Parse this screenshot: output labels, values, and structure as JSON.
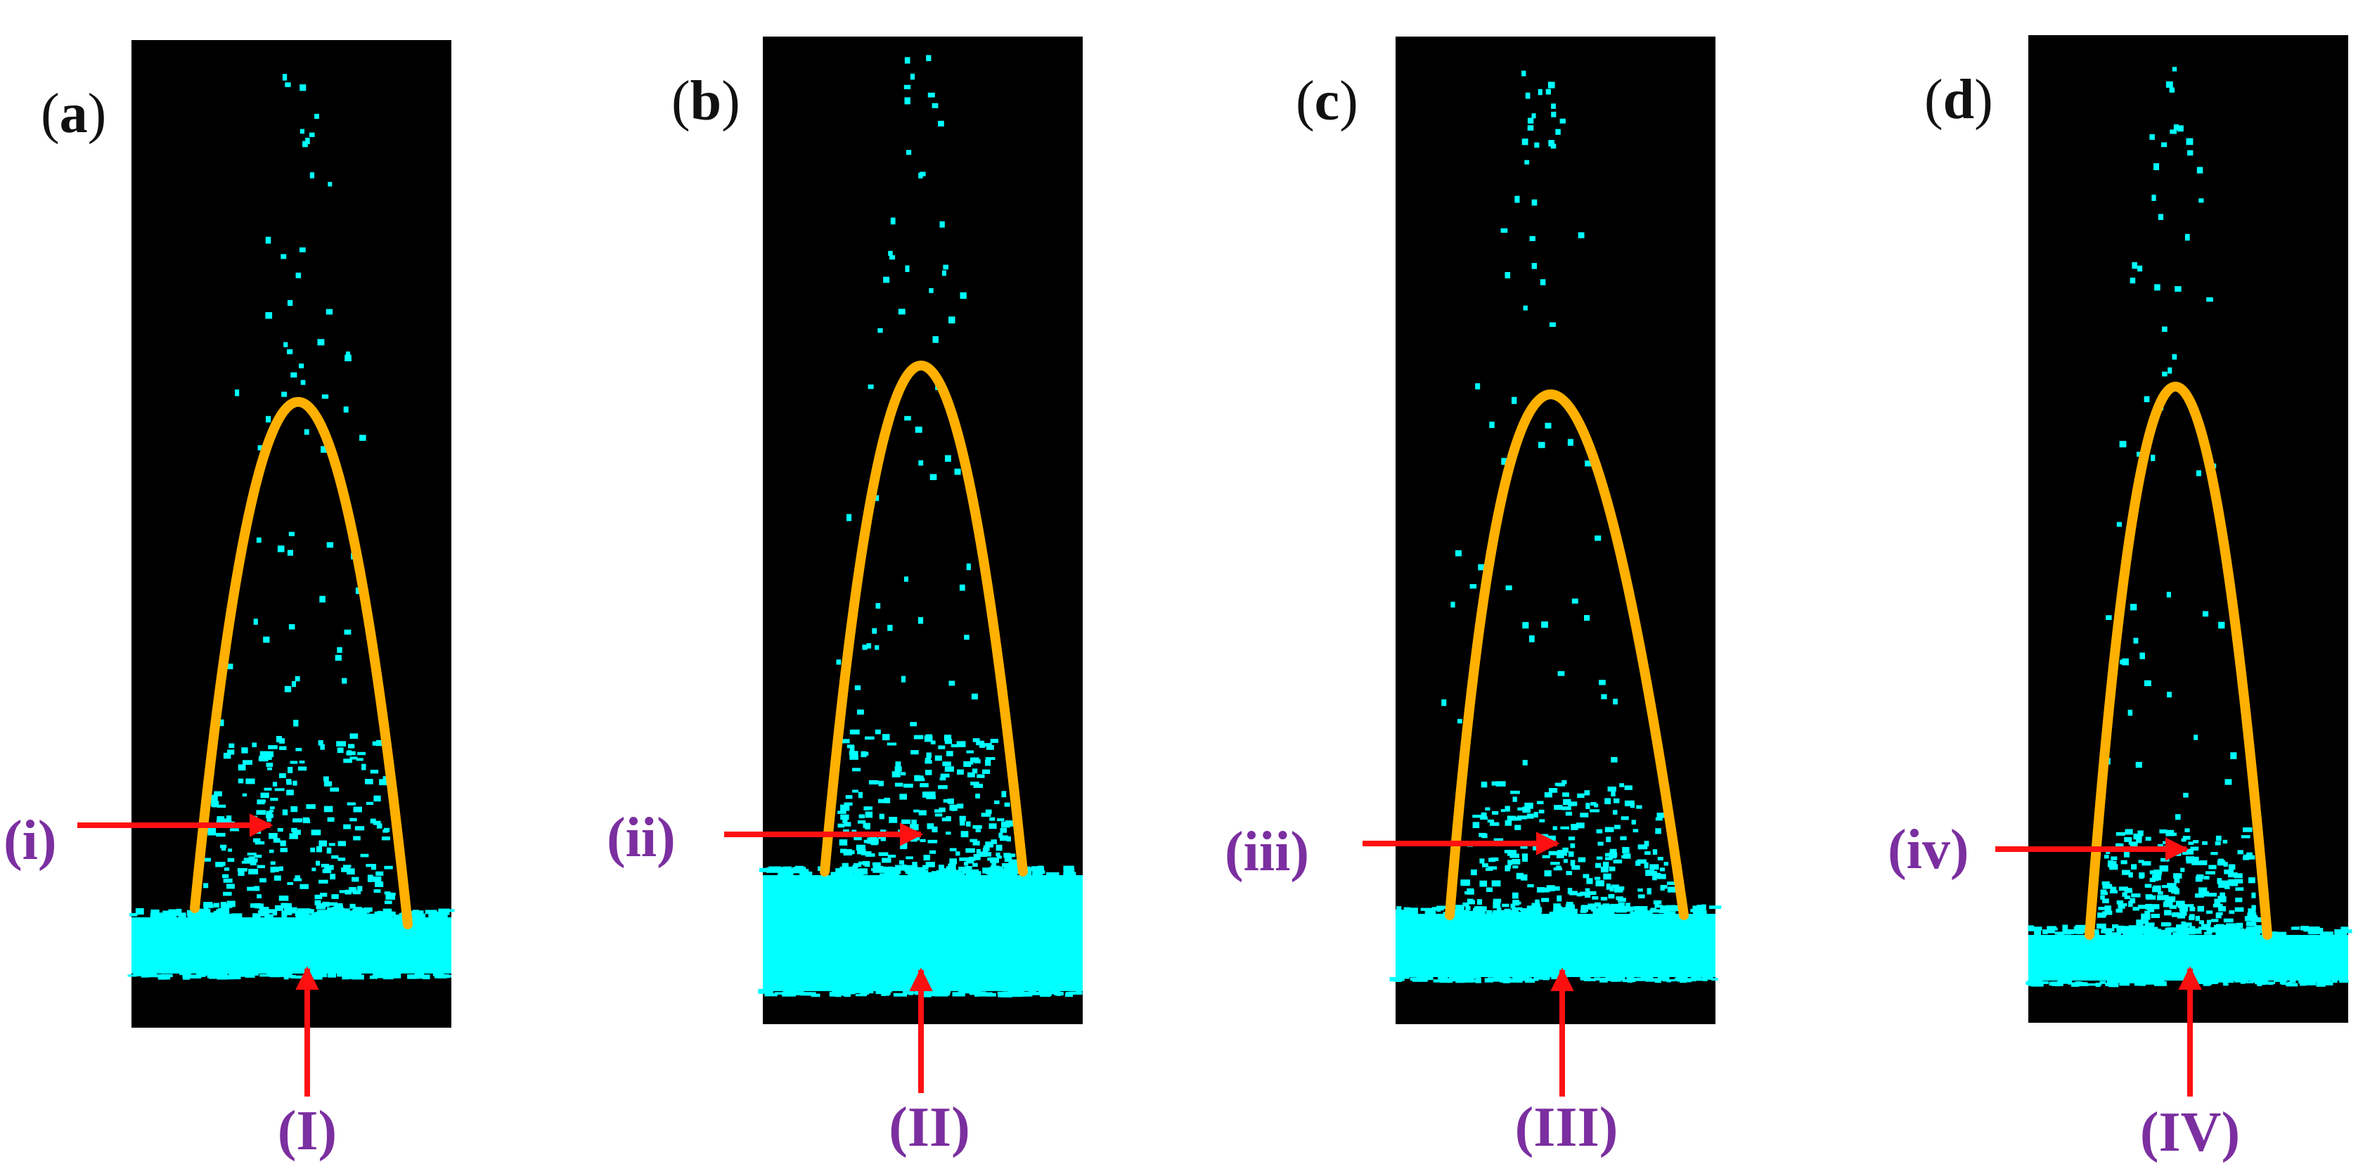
{
  "colors": {
    "background": "#ffffff",
    "panel": "#000000",
    "particles": "#00ffff",
    "curve": "#ffb000",
    "arrow": "#ff1010",
    "label": "#7b2fa0"
  },
  "panels": [
    {
      "open": "(",
      "letter": "a",
      "close": ")",
      "inner_label": "(i)",
      "base_label": "(I)"
    },
    {
      "open": "(",
      "letter": "b",
      "close": ")",
      "inner_label": "(ii)",
      "base_label": "(II)"
    },
    {
      "open": "(",
      "letter": "c",
      "close": ")",
      "inner_label": "(iii)",
      "base_label": "(III)"
    },
    {
      "open": "(",
      "letter": "d",
      "close": ")",
      "inner_label": "(iv)",
      "base_label": "(IV)"
    }
  ]
}
